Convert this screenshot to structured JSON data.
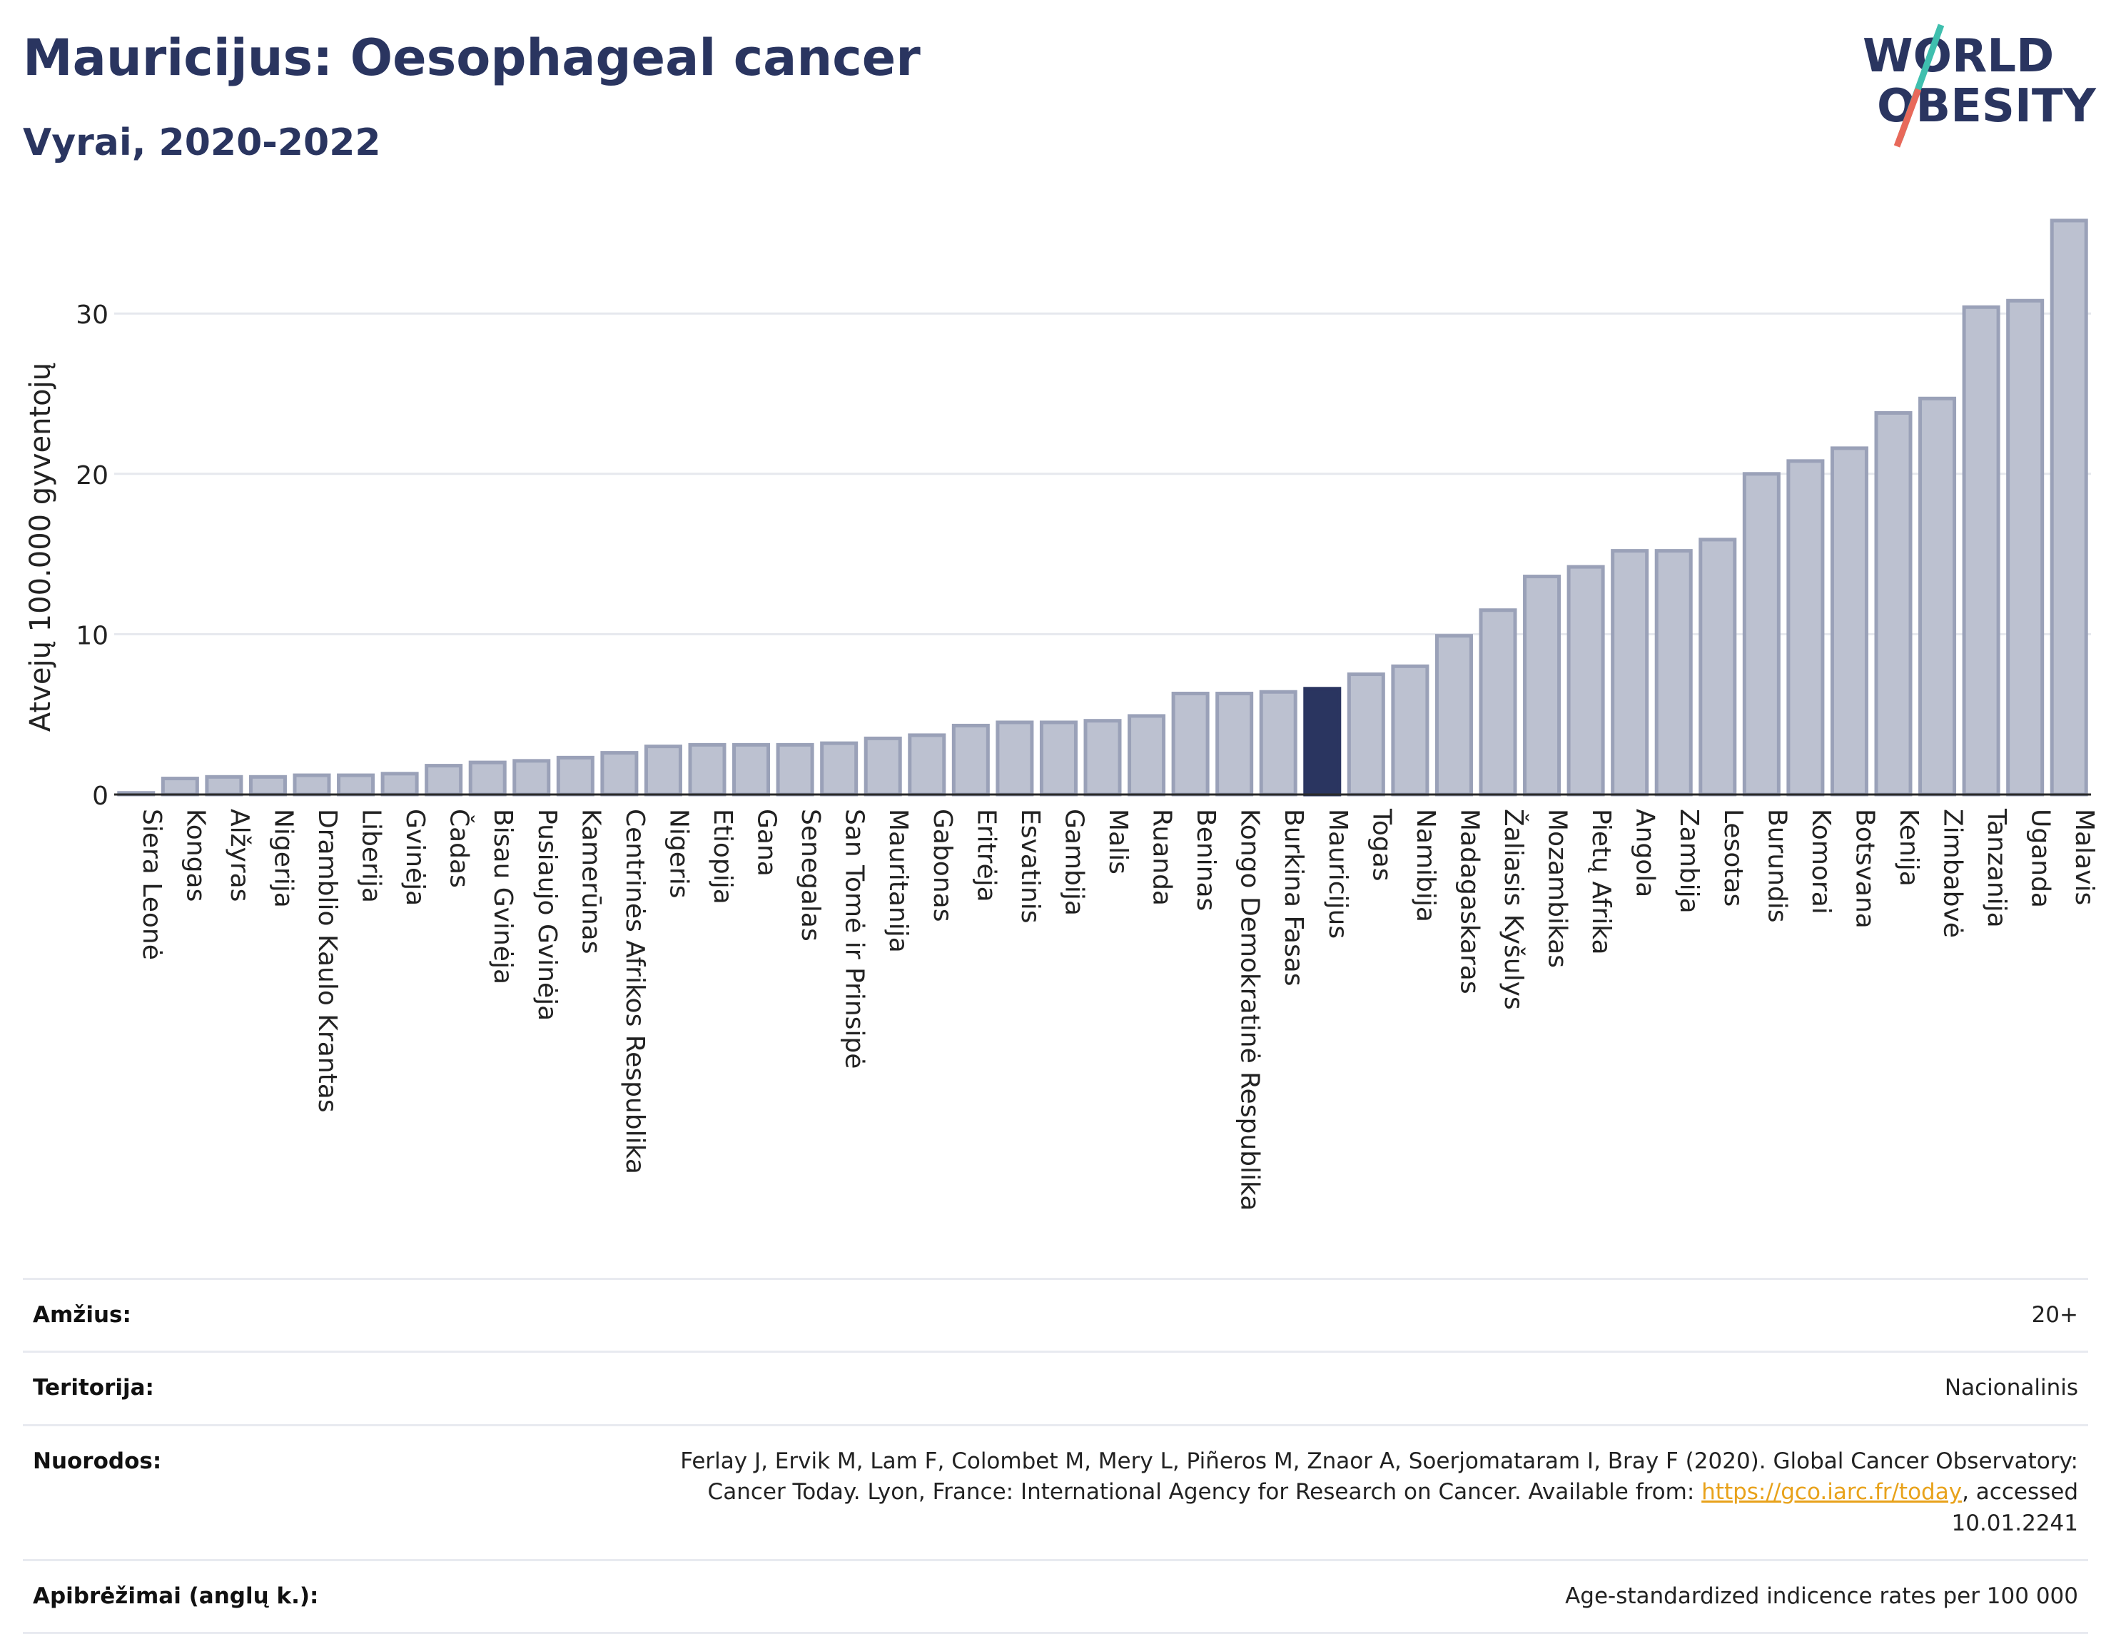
{
  "header": {
    "title": "Mauricijus: Oesophageal cancer",
    "subtitle": "Vyrai, 2020-2022"
  },
  "logo": {
    "line1": "WORLD",
    "line2": "OBESITY"
  },
  "colors": {
    "bar": "#bcc1d0",
    "bar_stroke": "#9aa1b8",
    "highlight": "#2a3560",
    "title": "#2a3560",
    "link": "#e8a21b"
  },
  "chart_data": {
    "type": "bar",
    "title": "Mauricijus: Oesophageal cancer",
    "subtitle": "Vyrai, 2020-2022",
    "xlabel": "",
    "ylabel": "Atvejų 100.000 gyventojų",
    "ylim": [
      0,
      37
    ],
    "yticks": [
      0,
      10,
      20,
      30
    ],
    "grid": true,
    "highlight": "Mauricijus",
    "categories": [
      "Siera Leonė",
      "Kongas",
      "Alžyras",
      "Nigerija",
      "Dramblio Kaulo Krantas",
      "Liberija",
      "Gvinėja",
      "Čadas",
      "Bisau Gvinėja",
      "Pusiaujo Gvinėja",
      "Kamerūnas",
      "Centrinės Afrikos Respublika",
      "Nigeris",
      "Etiopija",
      "Gana",
      "Senegalas",
      "San Tomė ir Prinsipė",
      "Mauritanija",
      "Gabonas",
      "Eritrėja",
      "Esvatinis",
      "Gambija",
      "Malis",
      "Ruanda",
      "Beninas",
      "Kongo Demokratinė Respublika",
      "Burkina Fasas",
      "Mauricijus",
      "Togas",
      "Namibija",
      "Madagaskaras",
      "Žaliasis Kyšulys",
      "Mozambikas",
      "Pietų Afrika",
      "Angola",
      "Zambija",
      "Lesotas",
      "Burundis",
      "Komorai",
      "Botsvana",
      "Kenija",
      "Zimbabvė",
      "Tanzanija",
      "Uganda",
      "Malavis"
    ],
    "values": [
      0.1,
      1.0,
      1.1,
      1.1,
      1.2,
      1.2,
      1.3,
      1.8,
      2.0,
      2.1,
      2.3,
      2.6,
      3.0,
      3.1,
      3.1,
      3.1,
      3.2,
      3.5,
      3.7,
      4.3,
      4.5,
      4.5,
      4.6,
      4.9,
      6.3,
      6.3,
      6.4,
      6.6,
      7.5,
      8.0,
      9.9,
      11.5,
      13.6,
      14.2,
      15.2,
      15.2,
      15.9,
      20.0,
      20.8,
      21.6,
      23.8,
      24.7,
      30.4,
      30.8,
      35.8
    ]
  },
  "info": {
    "age_label": "Amžius:",
    "age_value": "20+",
    "territory_label": "Teritorija:",
    "territory_value": "Nacionalinis",
    "refs_label": "Nuorodos:",
    "refs_text_1": "Ferlay J, Ervik M, Lam F, Colombet M, Mery L, Piñeros M, Znaor A, Soerjomataram I, Bray F (2020). Global Cancer Observatory: Cancer Today. Lyon, France: International Agency for Research on Cancer. Available from: ",
    "refs_link": "https://gco.iarc.fr/today",
    "refs_text_2": ", accessed 10.01.2241",
    "defs_label": "Apibrėžimai (anglų k.):",
    "defs_value": "Age-standardized indicence rates per 100 000"
  }
}
